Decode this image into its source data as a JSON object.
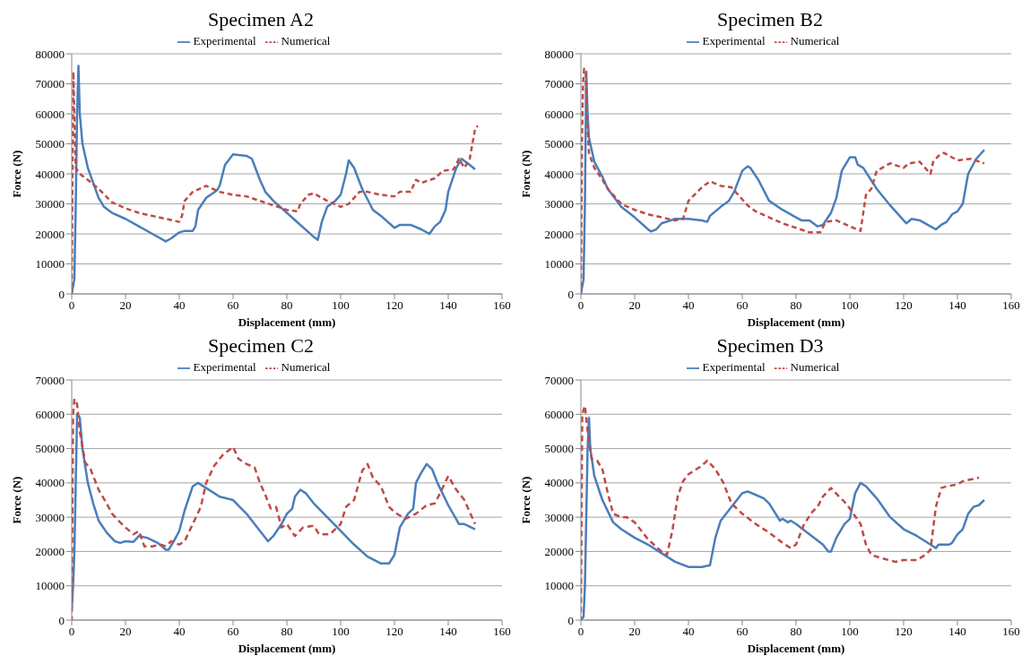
{
  "chart_data": [
    {
      "type": "line",
      "title": "Specimen A2",
      "xlabel": "Displacement (mm)",
      "ylabel": "Force (N)",
      "xlim": [
        0,
        160
      ],
      "xticks": [
        0,
        20,
        40,
        60,
        80,
        100,
        120,
        140,
        160
      ],
      "ylim": [
        0,
        80000
      ],
      "yticks": [
        0,
        10000,
        20000,
        30000,
        40000,
        50000,
        60000,
        70000,
        80000
      ],
      "grid": "y",
      "legend": "top",
      "series": [
        {
          "name": "Experimental",
          "color": "#4a7ebb",
          "line_style": "solid",
          "x": [
            0,
            1,
            1.5,
            2,
            2.5,
            3,
            4,
            6,
            8,
            10,
            12,
            15,
            20,
            25,
            30,
            35,
            37,
            40,
            42,
            45,
            46,
            47,
            50,
            54,
            55,
            57,
            60,
            65,
            67,
            70,
            72,
            75,
            80,
            85,
            90,
            91.5,
            93,
            95,
            98,
            100,
            102,
            103,
            105,
            108,
            112,
            115,
            120,
            122,
            126,
            130,
            133,
            135,
            137,
            139,
            140,
            143,
            145,
            148,
            150
          ],
          "values": [
            0,
            5000,
            30000,
            60000,
            76000,
            60000,
            50000,
            42000,
            37000,
            32000,
            29000,
            27000,
            25000,
            22500,
            20000,
            17500,
            18500,
            20500,
            21000,
            21000,
            22500,
            28000,
            32000,
            34500,
            36000,
            43000,
            46500,
            46000,
            45000,
            38000,
            34000,
            31000,
            27000,
            23000,
            19000,
            18000,
            24000,
            29000,
            31000,
            33000,
            40000,
            44500,
            42000,
            35000,
            28000,
            26000,
            22000,
            23000,
            23000,
            21500,
            20000,
            22500,
            24000,
            28000,
            34000,
            42000,
            45000,
            43000,
            41500
          ]
        },
        {
          "name": "Numerical",
          "color": "#be4b48",
          "line_style": "dashed",
          "x": [
            0,
            0.3,
            0.6,
            1,
            1.5,
            3,
            6,
            10,
            15,
            20,
            25,
            30,
            35,
            40,
            41,
            42,
            45,
            50,
            55,
            60,
            65,
            70,
            75,
            80,
            84,
            85,
            88,
            90,
            95,
            100,
            103,
            107,
            110,
            115,
            120,
            122,
            126,
            128,
            130,
            135,
            138,
            142,
            144,
            146,
            148,
            150,
            151
          ],
          "values": [
            0,
            40000,
            74000,
            60000,
            42000,
            40000,
            38000,
            35000,
            30500,
            28500,
            27000,
            26000,
            25000,
            24000,
            26000,
            31000,
            34000,
            36000,
            34000,
            33000,
            32500,
            31000,
            29500,
            28000,
            27500,
            30000,
            33000,
            33500,
            31000,
            29000,
            30000,
            34000,
            34000,
            33000,
            32500,
            34000,
            34000,
            38000,
            37000,
            38500,
            41000,
            41500,
            45000,
            42000,
            45000,
            55000,
            56000
          ]
        }
      ]
    },
    {
      "type": "line",
      "title": "Specimen B2",
      "xlabel": "Displacement (mm)",
      "ylabel": "Force (N)",
      "xlim": [
        0,
        160
      ],
      "xticks": [
        0,
        20,
        40,
        60,
        80,
        100,
        120,
        140,
        160
      ],
      "ylim": [
        0,
        80000
      ],
      "yticks": [
        0,
        10000,
        20000,
        30000,
        40000,
        50000,
        60000,
        70000,
        80000
      ],
      "grid": "y",
      "legend": "top",
      "series": [
        {
          "name": "Experimental",
          "color": "#4a7ebb",
          "line_style": "solid",
          "x": [
            0,
            1,
            1.5,
            2,
            2.5,
            3,
            5,
            8,
            10,
            15,
            20,
            25,
            26,
            28,
            30,
            35,
            40,
            45,
            47,
            48,
            52,
            55,
            57,
            60,
            62,
            63,
            66,
            70,
            75,
            80,
            82,
            85,
            88,
            90,
            93,
            95,
            97,
            100,
            102,
            103,
            105,
            110,
            115,
            120,
            121,
            123,
            126,
            130,
            132,
            134,
            136,
            138,
            140,
            142,
            144,
            147,
            150
          ],
          "values": [
            0,
            5000,
            30000,
            74000,
            60000,
            52000,
            44000,
            39000,
            35000,
            29000,
            25500,
            21500,
            20800,
            21500,
            23500,
            25000,
            25000,
            24500,
            24000,
            26000,
            29000,
            31000,
            34000,
            41000,
            42500,
            42000,
            38000,
            31000,
            28000,
            25500,
            24500,
            24500,
            22500,
            23000,
            27000,
            32000,
            41000,
            45500,
            45500,
            43000,
            42000,
            35000,
            29500,
            24500,
            23500,
            25000,
            24500,
            22500,
            21500,
            23000,
            24000,
            26500,
            27500,
            30000,
            40000,
            45000,
            48000
          ]
        },
        {
          "name": "Numerical",
          "color": "#be4b48",
          "line_style": "dashed",
          "x": [
            0,
            0.4,
            0.8,
            1.2,
            1.8,
            2.2,
            3,
            5,
            8,
            10,
            15,
            20,
            25,
            30,
            35,
            38,
            40,
            45,
            48,
            52,
            56,
            58,
            62,
            65,
            70,
            75,
            80,
            85,
            89,
            91,
            95,
            100,
            104,
            106,
            108,
            110,
            115,
            120,
            122,
            126,
            128,
            130,
            131,
            133,
            135,
            140,
            145,
            150
          ],
          "values": [
            0,
            50000,
            70000,
            75000,
            74000,
            60000,
            47000,
            42000,
            38000,
            35000,
            30000,
            28000,
            26500,
            25500,
            24500,
            25000,
            31000,
            35500,
            37500,
            36000,
            35500,
            33500,
            29500,
            27500,
            25500,
            23500,
            22000,
            20500,
            20500,
            24000,
            24500,
            22500,
            21000,
            33000,
            35000,
            41000,
            43500,
            42000,
            43500,
            44000,
            42000,
            40000,
            44000,
            46000,
            47000,
            44500,
            45000,
            43500
          ]
        }
      ]
    },
    {
      "type": "line",
      "title": "Specimen C2",
      "xlabel": "Displacement (mm)",
      "ylabel": "Force (N)",
      "xlim": [
        0,
        160
      ],
      "xticks": [
        0,
        20,
        40,
        60,
        80,
        100,
        120,
        140,
        160
      ],
      "ylim": [
        0,
        70000
      ],
      "yticks": [
        0,
        10000,
        20000,
        30000,
        40000,
        50000,
        60000,
        70000
      ],
      "grid": "y",
      "legend": "top",
      "series": [
        {
          "name": "Experimental",
          "color": "#4a7ebb",
          "line_style": "solid",
          "x": [
            0,
            0.5,
            1,
            1.5,
            2,
            3,
            4,
            6,
            8,
            10,
            13,
            16,
            18,
            20,
            23,
            25,
            28,
            32,
            35,
            36,
            38,
            40,
            42,
            45,
            47,
            50,
            55,
            60,
            65,
            70,
            73,
            75,
            78,
            80,
            82,
            83,
            85,
            87,
            90,
            95,
            100,
            105,
            110,
            115,
            118,
            120,
            122,
            125,
            127,
            128,
            130,
            132,
            134,
            136,
            140,
            144,
            146,
            150
          ],
          "values": [
            3000,
            10000,
            20000,
            40000,
            60000,
            59000,
            50000,
            40000,
            34000,
            29000,
            25500,
            23000,
            22500,
            23000,
            22800,
            24500,
            24000,
            22500,
            20500,
            20500,
            23000,
            26000,
            32000,
            39000,
            40000,
            38500,
            36000,
            35000,
            31000,
            26000,
            23000,
            24500,
            28000,
            31000,
            32500,
            36000,
            38000,
            37000,
            34000,
            30000,
            26000,
            22000,
            18500,
            16500,
            16500,
            19000,
            27000,
            31000,
            32500,
            40000,
            43000,
            45500,
            44000,
            40000,
            33500,
            28000,
            28000,
            26500
          ]
        },
        {
          "name": "Numerical",
          "color": "#be4b48",
          "line_style": "dashed",
          "x": [
            0,
            0.5,
            1,
            2,
            3,
            5,
            7,
            10,
            13,
            15,
            18,
            20,
            23,
            25,
            27,
            30,
            33,
            35,
            37,
            40,
            42,
            45,
            48,
            50,
            53,
            56,
            60,
            62,
            65,
            68,
            70,
            72,
            74,
            76,
            78,
            80,
            83,
            86,
            90,
            92,
            96,
            100,
            102,
            105,
            108,
            110,
            112,
            115,
            118,
            120,
            124,
            128,
            132,
            135,
            137,
            140,
            143,
            146,
            150
          ],
          "values": [
            0,
            60000,
            64500,
            63000,
            55000,
            46000,
            44000,
            38000,
            34000,
            31000,
            28500,
            27000,
            25000,
            26000,
            21500,
            21500,
            22000,
            21500,
            23000,
            22000,
            23000,
            28000,
            33000,
            40000,
            45000,
            48000,
            50500,
            47000,
            45500,
            44500,
            40000,
            36500,
            32500,
            33000,
            27000,
            28000,
            24500,
            27000,
            27500,
            25000,
            25000,
            28000,
            33000,
            35000,
            43500,
            45500,
            41500,
            39000,
            33000,
            31500,
            29500,
            31000,
            33500,
            34000,
            37000,
            42000,
            38000,
            35000,
            28000
          ]
        }
      ]
    },
    {
      "type": "line",
      "title": "Specimen D3",
      "xlabel": "Displacement (mm)",
      "ylabel": "Force (N)",
      "xlim": [
        0,
        160
      ],
      "xticks": [
        0,
        20,
        40,
        60,
        80,
        100,
        120,
        140,
        160
      ],
      "ylim": [
        0,
        70000
      ],
      "yticks": [
        0,
        10000,
        20000,
        30000,
        40000,
        50000,
        60000,
        70000
      ],
      "grid": "y",
      "legend": "top",
      "series": [
        {
          "name": "Experimental",
          "color": "#4a7ebb",
          "line_style": "solid",
          "x": [
            0,
            1,
            1.5,
            2,
            2.5,
            3,
            3.5,
            5,
            8,
            12,
            15,
            20,
            25,
            30,
            35,
            40,
            45,
            48,
            50,
            52,
            55,
            58,
            60,
            62,
            65,
            68,
            70,
            72,
            74,
            75,
            77,
            78,
            80,
            85,
            90,
            92,
            93,
            95,
            98,
            100,
            102,
            104,
            106,
            110,
            115,
            120,
            125,
            130,
            132,
            133,
            137,
            138,
            140,
            142,
            144,
            146,
            148,
            150
          ],
          "values": [
            0,
            1000,
            10000,
            30000,
            50000,
            59000,
            50000,
            42000,
            35000,
            28500,
            26500,
            24000,
            22000,
            19500,
            17000,
            15500,
            15500,
            16000,
            24000,
            29000,
            32000,
            35000,
            37000,
            37500,
            36500,
            35500,
            34000,
            31500,
            29000,
            29500,
            28500,
            29000,
            28000,
            25000,
            22000,
            20000,
            20000,
            24000,
            28000,
            29500,
            37000,
            40000,
            39000,
            35500,
            30000,
            26500,
            24500,
            22000,
            21000,
            22000,
            22000,
            22500,
            25000,
            26500,
            31000,
            33000,
            33500,
            35000
          ]
        },
        {
          "name": "Numerical",
          "color": "#be4b48",
          "line_style": "dashed",
          "x": [
            0,
            0.5,
            1.5,
            2.5,
            4,
            6,
            8,
            10,
            12,
            15,
            17,
            20,
            25,
            30,
            32,
            34,
            36,
            38,
            40,
            43,
            45,
            47,
            50,
            53,
            56,
            60,
            65,
            70,
            75,
            78,
            80,
            83,
            86,
            88,
            90,
            93,
            96,
            98,
            100,
            104,
            106,
            108,
            112,
            117,
            120,
            125,
            128,
            130,
            132,
            134,
            136,
            140,
            142,
            145,
            148
          ],
          "values": [
            0,
            60000,
            62500,
            55000,
            47000,
            46500,
            44000,
            37000,
            31000,
            30000,
            30000,
            28500,
            23500,
            20000,
            19000,
            26000,
            36000,
            40500,
            42500,
            44000,
            45000,
            46500,
            44000,
            40000,
            34000,
            31000,
            28000,
            25500,
            22500,
            21000,
            22000,
            28000,
            31500,
            33000,
            36000,
            38500,
            36000,
            34500,
            32500,
            28000,
            22000,
            19000,
            18000,
            17000,
            17500,
            17500,
            19000,
            20500,
            33000,
            38500,
            39000,
            39500,
            40500,
            41000,
            41500
          ]
        }
      ]
    }
  ]
}
